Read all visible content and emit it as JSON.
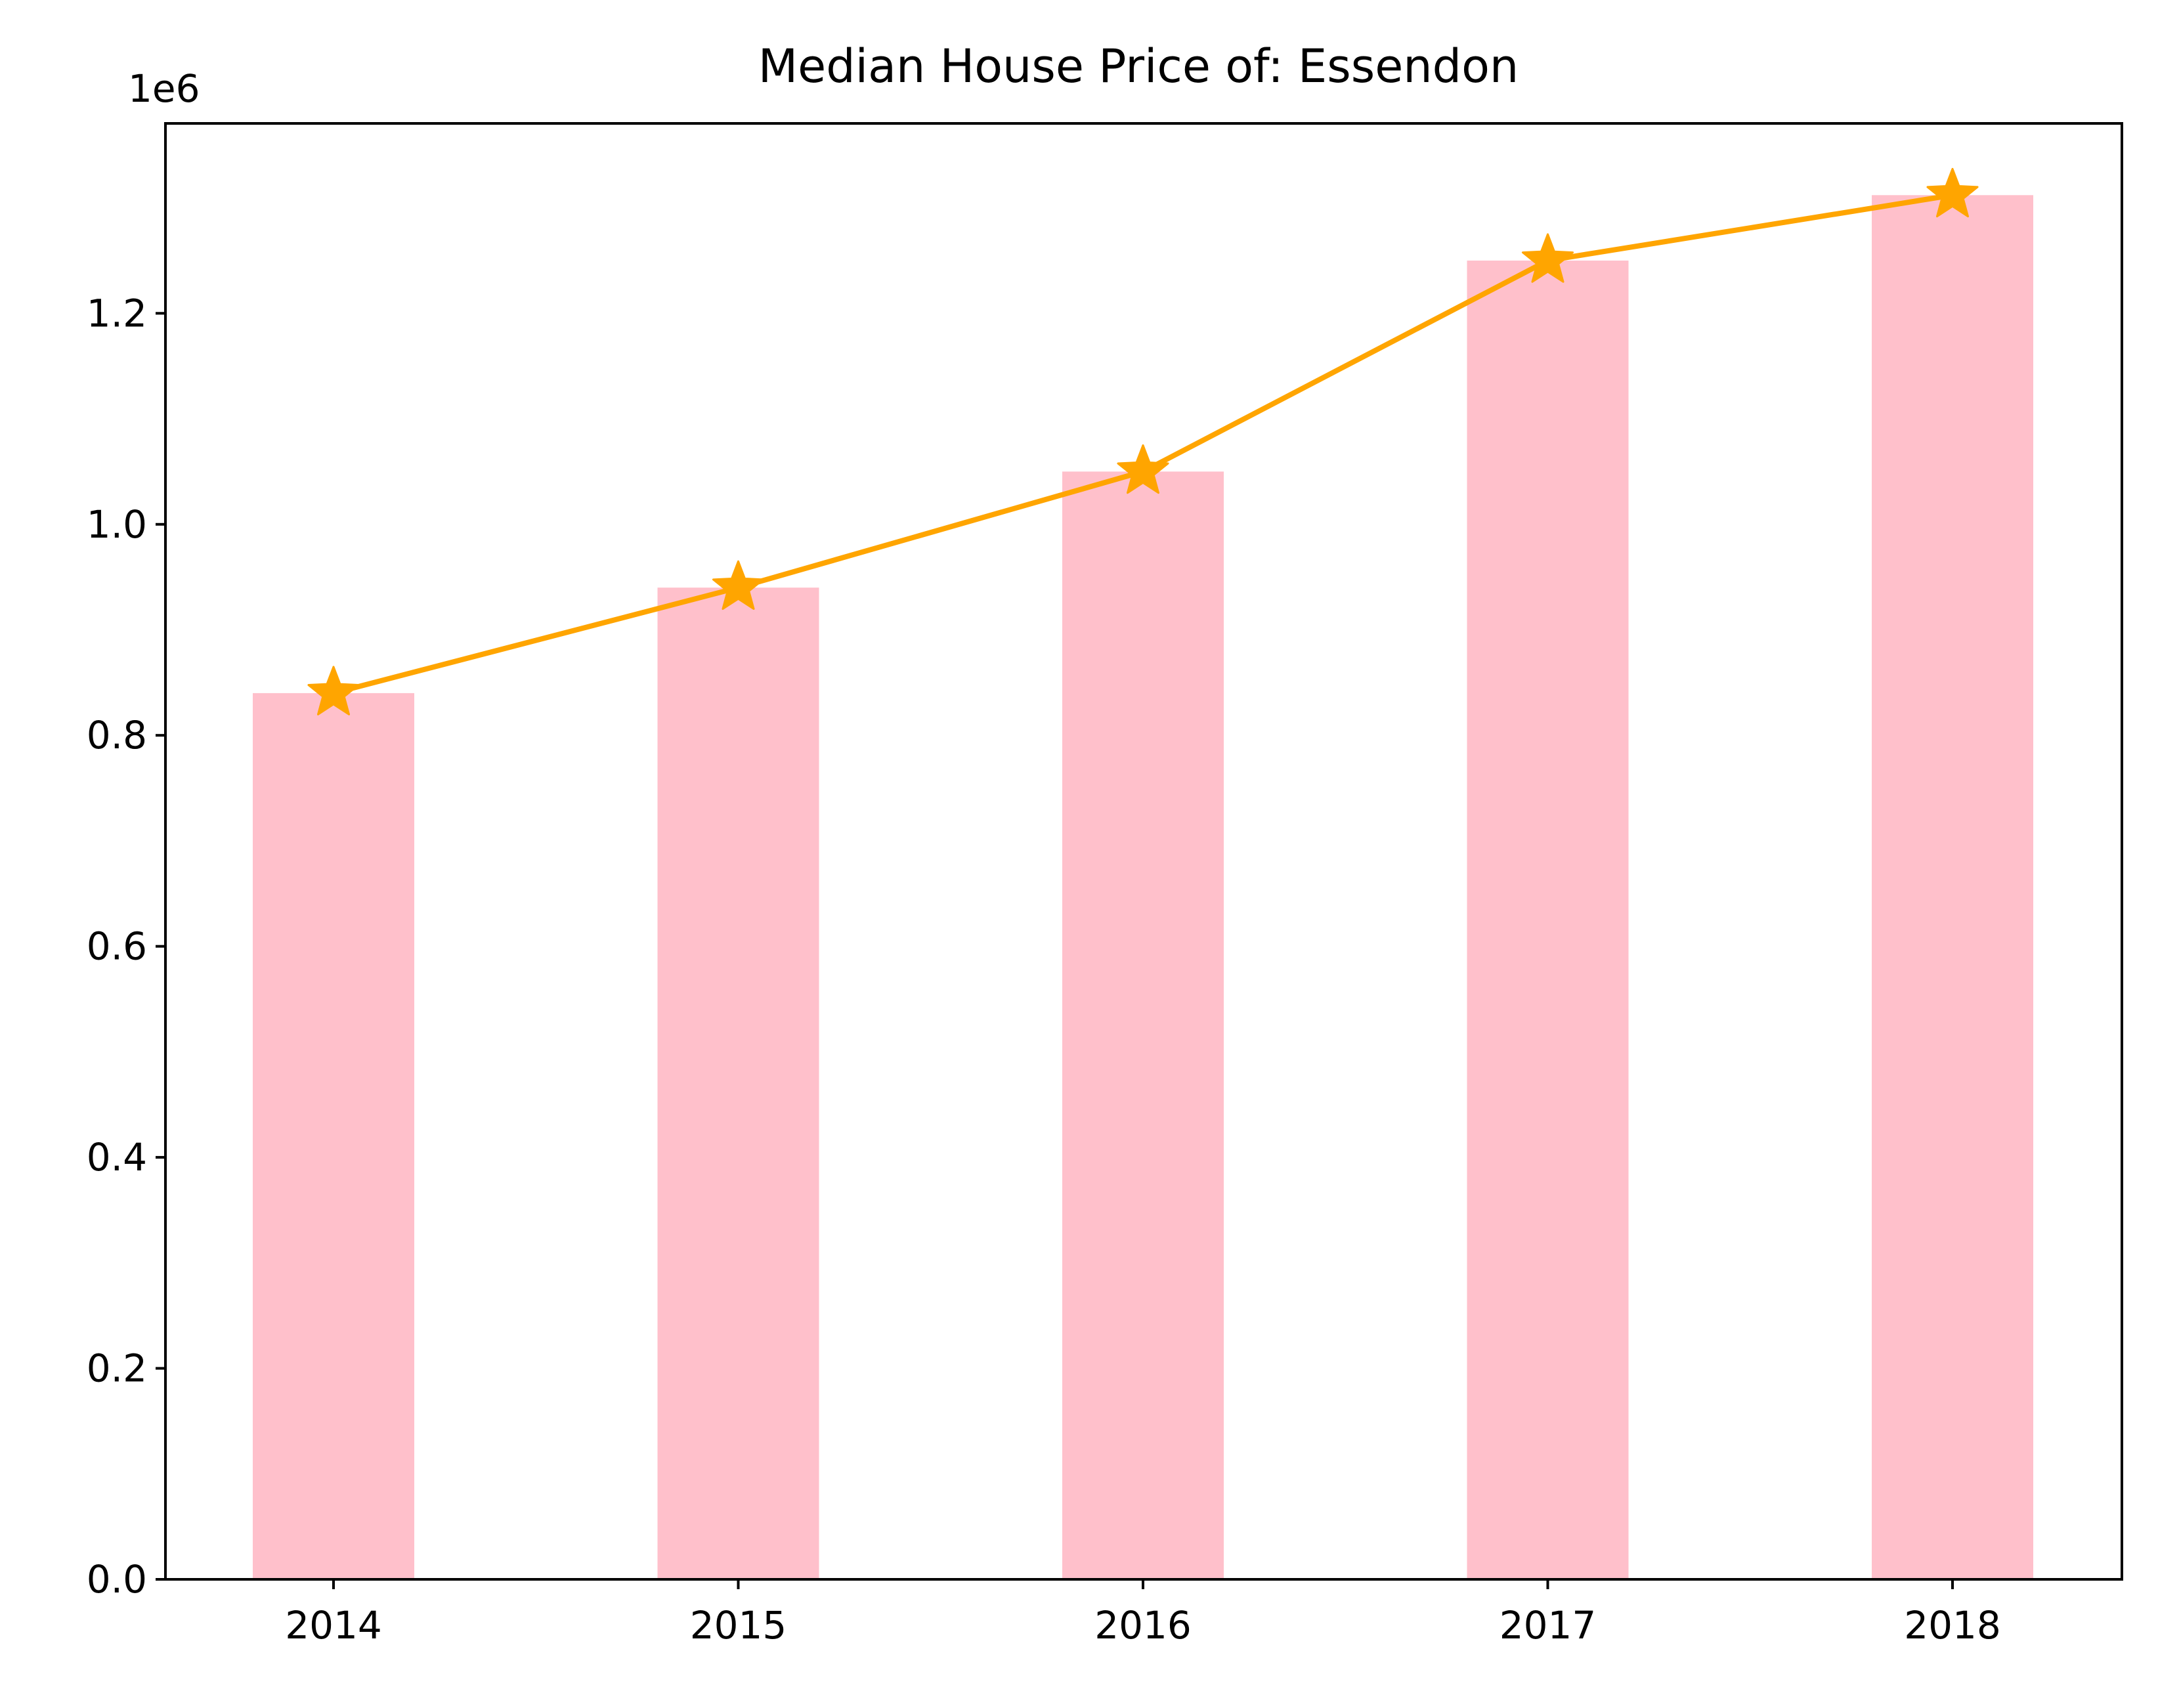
{
  "chart_data": {
    "type": "bar",
    "title": "Median House Price of: Essendon",
    "xlabel": "",
    "ylabel": "",
    "y_offset_label": "1e6",
    "categories": [
      "2014",
      "2015",
      "2016",
      "2017",
      "2018"
    ],
    "series": [
      {
        "kind": "bar",
        "values": [
          840000,
          940000,
          1050000,
          1250000,
          1312000
        ]
      },
      {
        "kind": "line",
        "marker": "star",
        "values": [
          840000,
          940000,
          1050000,
          1250000,
          1312000
        ]
      }
    ],
    "ylim": [
      0,
      1380000
    ],
    "yticks": [
      0,
      200000,
      400000,
      600000,
      800000,
      1000000,
      1200000
    ],
    "ytick_labels": [
      "0.0",
      "0.2",
      "0.4",
      "0.6",
      "0.8",
      "1.0",
      "1.2"
    ],
    "grid": false,
    "colors": {
      "bar": "#ffc0cb",
      "line": "#ffa500",
      "axes": "#000000"
    }
  }
}
